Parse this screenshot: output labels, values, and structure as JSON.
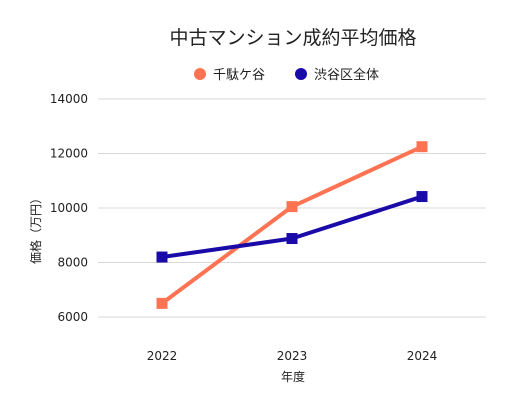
{
  "chart_data": {
    "type": "line",
    "title": "中古マンション成約平均価格",
    "xlabel": "年度",
    "ylabel": "価格（万円）",
    "categories": [
      "2022",
      "2023",
      "2024"
    ],
    "ylim": [
      6000,
      14000
    ],
    "yticks": [
      6000,
      8000,
      10000,
      12000,
      14000
    ],
    "grid": true,
    "legend_position": "top",
    "series": [
      {
        "name": "千駄ケ谷",
        "color": "#ff7352",
        "values": [
          6500,
          10050,
          12250
        ]
      },
      {
        "name": "渋谷区全体",
        "color": "#1a0aa8",
        "values": [
          8200,
          8880,
          10420
        ]
      }
    ]
  }
}
